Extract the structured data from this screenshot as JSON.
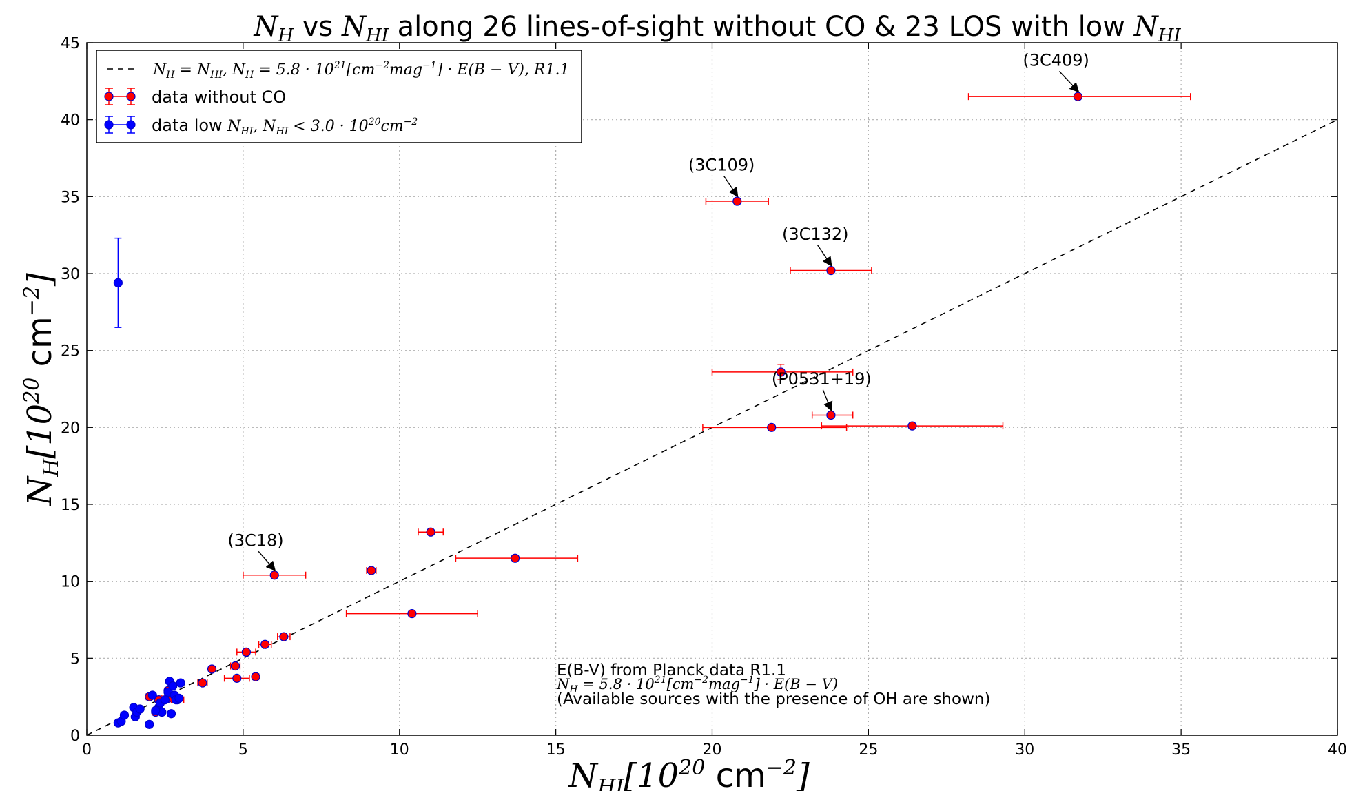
{
  "chart_data": {
    "type": "scatter",
    "title_parts": [
      "N",
      "H",
      " vs ",
      "N",
      "HI",
      " along 26 lines-of-sight without CO & 23 LOS with low ",
      "N",
      "HI"
    ],
    "xlabel_parts": [
      "N",
      "HI",
      "[10",
      "20",
      " cm",
      "−2",
      "]"
    ],
    "ylabel_parts": [
      "N",
      "H",
      "[10",
      "20",
      " cm",
      "−2",
      "]"
    ],
    "xlim": [
      0,
      40
    ],
    "ylim": [
      0,
      45
    ],
    "xticks": [
      "0",
      "5",
      "10",
      "15",
      "20",
      "25",
      "30",
      "35",
      "40"
    ],
    "yticks": [
      "0",
      "5",
      "10",
      "15",
      "20",
      "25",
      "30",
      "35",
      "40",
      "45"
    ],
    "grid": true,
    "legend_position": "upper-left",
    "legend": {
      "line": "N_H = N_HI, N_H = 5.8 · 10^21 [cm^-2 mag^-1] · E(B − V), R1.1",
      "red": "data without CO",
      "blue_prefix": "data low ",
      "blue_math": "N_HI, N_HI < 3.0 · 10^20 cm^-2"
    },
    "note": {
      "line1": "E(B-V) from Planck data R1.1",
      "line2": "N_H = 5.8 · 10^21 [cm^-2 mag^-1] · E(B − V)",
      "line3": "(Available sources with the presence of OH are shown)"
    },
    "colors": {
      "red": "#ff0000",
      "blue": "#0000ff",
      "line": "#000000",
      "grid": "#b0b0b0"
    },
    "series": [
      {
        "name": "data without CO",
        "color": "#ff0000",
        "points": [
          {
            "x": 31.7,
            "y": 41.5,
            "xerr": [
              3.5,
              3.6
            ]
          },
          {
            "x": 20.8,
            "y": 34.7,
            "xerr": [
              1.0,
              1.0
            ]
          },
          {
            "x": 23.8,
            "y": 30.2,
            "xerr": [
              1.3,
              1.3
            ]
          },
          {
            "x": 22.2,
            "y": 23.6,
            "xerr": [
              2.2,
              2.3
            ],
            "yerr": [
              0.5,
              0.5
            ]
          },
          {
            "x": 23.8,
            "y": 20.8,
            "xerr": [
              0.6,
              0.7
            ]
          },
          {
            "x": 21.9,
            "y": 20.0,
            "xerr": [
              2.2,
              2.4
            ]
          },
          {
            "x": 26.4,
            "y": 20.1,
            "xerr": [
              2.9,
              2.9
            ]
          },
          {
            "x": 11.0,
            "y": 13.2,
            "xerr": [
              0.4,
              0.4
            ]
          },
          {
            "x": 13.7,
            "y": 11.5,
            "xerr": [
              1.9,
              2.0
            ]
          },
          {
            "x": 6.0,
            "y": 10.4,
            "xerr": [
              1.0,
              1.0
            ]
          },
          {
            "x": 9.1,
            "y": 10.7,
            "xerr": [
              0.15,
              0.15
            ]
          },
          {
            "x": 10.4,
            "y": 7.9,
            "xerr": [
              2.1,
              2.1
            ]
          },
          {
            "x": 6.3,
            "y": 6.4,
            "xerr": [
              0.2,
              0.2
            ]
          },
          {
            "x": 5.7,
            "y": 5.9,
            "xerr": [
              0.2,
              0.2
            ]
          },
          {
            "x": 5.1,
            "y": 5.4,
            "xerr": [
              0.3,
              0.3
            ]
          },
          {
            "x": 4.75,
            "y": 4.5,
            "xerr": [
              0.15,
              0.15
            ]
          },
          {
            "x": 4.0,
            "y": 4.3,
            "xerr": [
              0.1,
              0.1
            ]
          },
          {
            "x": 3.7,
            "y": 3.4,
            "xerr": [
              0.15,
              0.15
            ]
          },
          {
            "x": 4.8,
            "y": 3.7,
            "xerr": [
              0.4,
              0.4
            ]
          },
          {
            "x": 5.4,
            "y": 3.8,
            "xerr": [
              0.1,
              0.1
            ]
          },
          {
            "x": 2.0,
            "y": 2.5,
            "xerr": [
              0.1,
              0.1
            ]
          },
          {
            "x": 2.6,
            "y": 2.4,
            "xerr": [
              0.2,
              0.2
            ]
          },
          {
            "x": 2.3,
            "y": 2.3,
            "xerr": [
              0.1,
              0.1
            ]
          },
          {
            "x": 2.2,
            "y": 1.5,
            "xerr": [
              0.1,
              0.2
            ]
          },
          {
            "x": 2.6,
            "y": 2.9,
            "xerr": [
              0.1,
              0.1
            ]
          },
          {
            "x": 2.9,
            "y": 2.3,
            "xerr": [
              0.2,
              0.2
            ]
          }
        ]
      },
      {
        "name": "data low N_HI",
        "color": "#0000ff",
        "points": [
          {
            "x": 1.0,
            "y": 29.4,
            "yerr": [
              2.9,
              2.9
            ]
          },
          {
            "x": 1.0,
            "y": 0.8
          },
          {
            "x": 1.1,
            "y": 0.9
          },
          {
            "x": 1.2,
            "y": 1.3
          },
          {
            "x": 1.5,
            "y": 1.8
          },
          {
            "x": 1.55,
            "y": 1.2
          },
          {
            "x": 1.6,
            "y": 1.5
          },
          {
            "x": 1.7,
            "y": 1.7
          },
          {
            "x": 2.0,
            "y": 0.7
          },
          {
            "x": 2.1,
            "y": 2.6
          },
          {
            "x": 2.3,
            "y": 1.8
          },
          {
            "x": 2.35,
            "y": 2.1
          },
          {
            "x": 2.4,
            "y": 1.5
          },
          {
            "x": 2.5,
            "y": 2.3
          },
          {
            "x": 2.6,
            "y": 2.8
          },
          {
            "x": 2.65,
            "y": 3.5
          },
          {
            "x": 2.7,
            "y": 1.4
          },
          {
            "x": 2.75,
            "y": 3.2
          },
          {
            "x": 2.8,
            "y": 2.6
          },
          {
            "x": 2.85,
            "y": 2.3
          },
          {
            "x": 2.95,
            "y": 2.4
          },
          {
            "x": 3.0,
            "y": 3.4
          },
          {
            "x": 2.2,
            "y": 1.6
          }
        ]
      }
    ],
    "annotations": [
      {
        "text": "(3C409)",
        "x": 31.7,
        "y": 41.5,
        "tx": 31.0,
        "ty": 43.5
      },
      {
        "text": "(3C109)",
        "x": 20.8,
        "y": 34.7,
        "tx": 20.3,
        "ty": 36.7
      },
      {
        "text": "(3C132)",
        "x": 23.8,
        "y": 30.2,
        "tx": 23.3,
        "ty": 32.2
      },
      {
        "text": "(P0531+19)",
        "x": 23.8,
        "y": 20.8,
        "tx": 23.5,
        "ty": 22.8
      },
      {
        "text": "(3C18)",
        "x": 6.0,
        "y": 10.4,
        "tx": 5.4,
        "ty": 12.3
      }
    ]
  }
}
